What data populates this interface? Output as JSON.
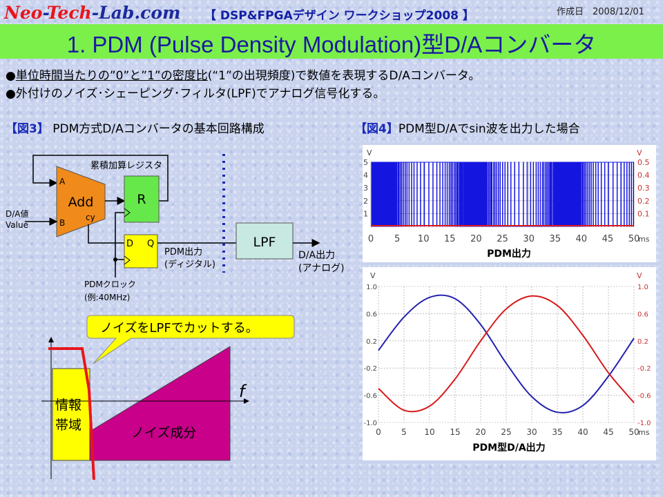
{
  "header": {
    "site_neo": "Neo",
    "site_dash1": "-",
    "site_tech": "Tech",
    "site_dash2": "-",
    "site_lab": "Lab",
    "site_com": ".com",
    "workshop": "【 DSP&FPGAデザイン ワークショップ2008 】",
    "date_label": "作成日　2008/12/01"
  },
  "title": "1. PDM (Pulse Density Modulation)型D/Aコンバータ",
  "bullets": {
    "b1_mark": "●",
    "b1_underlined": "単位時間当たりの”0”と”1”の密度比",
    "b1_rest": "(“1”の出現頻度)で数値を表現するD/Aコンバータ。",
    "b2": "●外付けのノイズ･シェーピング･フィルタ(LPF)でアナログ信号化する。"
  },
  "fig3": {
    "bracket": "【図3】",
    "title": " PDM方式D/Aコンバータの基本回路構成",
    "accum_label": "累積加算レジスタ",
    "add": "Add",
    "port_a": "A",
    "port_b": "B",
    "port_cy": "cy",
    "reg_r": "R",
    "dff_d": "D",
    "dff_q": "Q",
    "lpf": "LPF",
    "input_label_1": "D/A値",
    "input_label_2": "Value",
    "pdm_out_1": "PDM出力",
    "pdm_out_2": "(ディジタル)",
    "da_out_1": "D/A出力",
    "da_out_2": "(アナログ)",
    "clock_1": "PDMクロック",
    "clock_2": "(例:40MHz)",
    "callout": "ノイズをLPFでカットする。",
    "info_band_1": "情報",
    "info_band_2": "帯域",
    "noise": "ノイズ成分",
    "freq_axis": "f"
  },
  "fig4": {
    "bracket": "【図4】",
    "title": "PDM型D/Aでsin波を出力した場合",
    "top_caption": "PDM出力",
    "bottom_caption": "PDM型D/A出力",
    "colors": {
      "pdm": "#1515e0",
      "red": "#d81818",
      "blue": "#2222b0",
      "grid": "#9a9a9a"
    }
  },
  "chart_data": [
    {
      "type": "line",
      "title": "PDM出力",
      "x_unit": "ms",
      "xlim": [
        0,
        50
      ],
      "x_ticks": [
        0,
        5,
        10,
        15,
        20,
        25,
        30,
        35,
        40,
        45,
        50
      ],
      "y_left_label": "V",
      "y_left_ticks": [
        1,
        2,
        3,
        4,
        5
      ],
      "y_right_label": "V",
      "y_right_ticks": [
        0.1,
        0.2,
        0.3,
        0.4,
        0.5
      ],
      "series": [
        {
          "values_description_free": true,
          "x": [
            0,
            50
          ],
          "y_range": [
            0,
            5
          ]
        },
        {
          "x": [
            0,
            50
          ],
          "y": [
            0.01,
            0.01
          ]
        }
      ]
    },
    {
      "type": "line",
      "title": "PDM型D/A出力",
      "x_unit": "ms",
      "xlim": [
        0,
        50
      ],
      "x_ticks": [
        0,
        5,
        10,
        15,
        20,
        25,
        30,
        35,
        40,
        45,
        50
      ],
      "y_left_label": "V",
      "y_left_ticks": [
        1.0,
        0.6,
        0.2,
        -0.2,
        -0.6,
        -1.0
      ],
      "y_right_label": "V",
      "y_right_ticks": [
        1.0,
        0.6,
        0.2,
        -0.2,
        -0.6,
        -1.0
      ],
      "ylim": [
        -1.0,
        1.0
      ],
      "series": [
        {
          "x": [
            0,
            5,
            10,
            15,
            20,
            25,
            30,
            35,
            40,
            45,
            50
          ],
          "y": [
            0.06,
            0.55,
            0.84,
            0.82,
            0.44,
            -0.13,
            -0.62,
            -0.85,
            -0.75,
            -0.32,
            0.24
          ]
        },
        {
          "x": [
            0,
            5,
            10,
            15,
            20,
            25,
            30,
            35,
            40,
            45,
            50
          ],
          "y": [
            -0.5,
            -0.82,
            -0.76,
            -0.36,
            0.2,
            0.67,
            0.86,
            0.72,
            0.28,
            -0.27,
            -0.71
          ]
        }
      ]
    }
  ]
}
